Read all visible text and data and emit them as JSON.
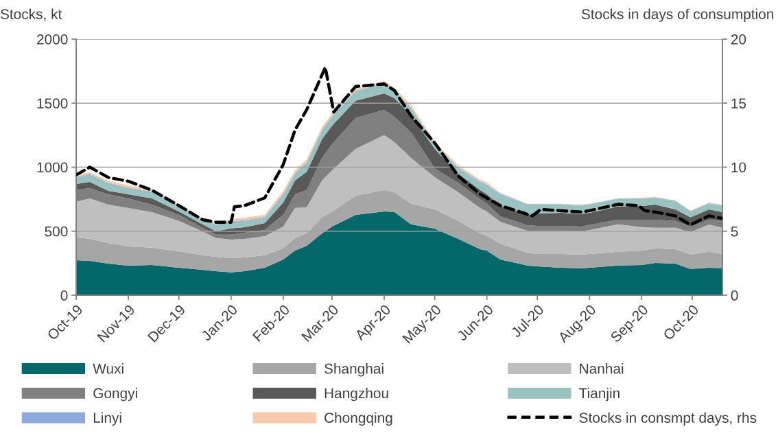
{
  "chart_data": {
    "type": "area",
    "stacked": true,
    "ylabel": "Stocks, kt",
    "y2label": "Stocks in days of consumption",
    "x": [
      "2019-10-01",
      "2019-10-09",
      "2019-10-20",
      "2019-11-01",
      "2019-11-15",
      "2019-12-01",
      "2019-12-15",
      "2019-12-23",
      "2020-01-01",
      "2020-01-09",
      "2020-01-21",
      "2020-02-01",
      "2020-02-08",
      "2020-02-15",
      "2020-02-24",
      "2020-03-01",
      "2020-03-15",
      "2020-04-01",
      "2020-04-07",
      "2020-04-17",
      "2020-05-01",
      "2020-05-15",
      "2020-05-28",
      "2020-06-01",
      "2020-06-09",
      "2020-06-25",
      "2020-07-01",
      "2020-07-15",
      "2020-07-27",
      "2020-08-01",
      "2020-08-18",
      "2020-09-01",
      "2020-09-09",
      "2020-09-21",
      "2020-09-30",
      "2020-10-11",
      "2020-10-19"
    ],
    "series": [
      {
        "name": "Wuxi",
        "color": "#04676a",
        "values": [
          273,
          268,
          247,
          231,
          236,
          214,
          198,
          188,
          179,
          188,
          214,
          279,
          349,
          386,
          483,
          536,
          627,
          654,
          650,
          554,
          520,
          440,
          359,
          349,
          279,
          232,
          225,
          214,
          211,
          214,
          232,
          236,
          252,
          247,
          205,
          214,
          211
        ]
      },
      {
        "name": "Shanghai",
        "color": "#a6a6a6",
        "values": [
          179,
          173,
          160,
          150,
          136,
          129,
          115,
          112,
          110,
          107,
          99,
          87,
          98,
          97,
          125,
          118,
          150,
          168,
          154,
          161,
          150,
          141,
          124,
          117,
          123,
          100,
          97,
          108,
          107,
          108,
          107,
          113,
          114,
          112,
          113,
          125,
          111
        ]
      },
      {
        "name": "Nanhai",
        "color": "#bfbfbf",
        "values": [
          277,
          315,
          301,
          300,
          277,
          238,
          186,
          147,
          145,
          145,
          148,
          170,
          234,
          205,
          288,
          322,
          367,
          429,
          393,
          357,
          252,
          223,
          198,
          188,
          172,
          172,
          178,
          178,
          181,
          187,
          215,
          183,
          161,
          168,
          175,
          213,
          205
        ]
      },
      {
        "name": "Gongyi",
        "color": "#808080",
        "values": [
          93,
          80,
          80,
          75,
          59,
          46,
          28,
          26,
          39,
          48,
          48,
          91,
          107,
          134,
          176,
          204,
          241,
          197,
          197,
          199,
          70,
          72,
          70,
          61,
          43,
          43,
          41,
          41,
          37,
          40,
          36,
          58,
          63,
          54,
          43,
          38,
          54
        ]
      },
      {
        "name": "Hangzhou",
        "color": "#595959",
        "values": [
          46,
          49,
          27,
          32,
          48,
          27,
          27,
          27,
          49,
          43,
          54,
          97,
          108,
          143,
          145,
          144,
          134,
          128,
          145,
          134,
          152,
          73,
          71,
          73,
          80,
          80,
          99,
          102,
          98,
          94,
          103,
          107,
          118,
          89,
          72,
          80,
          68
        ]
      },
      {
        "name": "Tianjin",
        "color": "#9ac2c1",
        "values": [
          49,
          59,
          59,
          48,
          48,
          39,
          32,
          47,
          52,
          50,
          45,
          64,
          53,
          71,
          70,
          70,
          73,
          77,
          61,
          53,
          36,
          43,
          63,
          70,
          91,
          81,
          68,
          65,
          63,
          65,
          58,
          54,
          53,
          64,
          46,
          45,
          48
        ]
      },
      {
        "name": "Linyi",
        "color": "#8faadc",
        "values": [
          5,
          5,
          5,
          5,
          5,
          5,
          5,
          5,
          5,
          5,
          5,
          5,
          5,
          5,
          5,
          5,
          5,
          5,
          5,
          5,
          5,
          5,
          5,
          5,
          5,
          4,
          4,
          4,
          4,
          4,
          4,
          4,
          4,
          4,
          4,
          4,
          4
        ]
      },
      {
        "name": "Chongqing",
        "color": "#f8cbad",
        "values": [
          22,
          11,
          17,
          17,
          17,
          15,
          9,
          11,
          16,
          20,
          14,
          22,
          22,
          22,
          22,
          22,
          17,
          15,
          14,
          22,
          12,
          18,
          12,
          16,
          7,
          3,
          3,
          3,
          7,
          3,
          3,
          6,
          3,
          2,
          3,
          5,
          5
        ]
      },
      {
        "name": "Stocks in consmpt days, rhs",
        "type": "line",
        "axis": "y2",
        "color": "#000000",
        "line_style": "dashed",
        "x": [
          "2019-10-01",
          "2019-10-09",
          "2019-10-20",
          "2019-11-01",
          "2019-11-15",
          "2019-12-01",
          "2019-12-15",
          "2019-12-23",
          "2020-01-01",
          "2020-01-03",
          "2020-01-09",
          "2020-01-21",
          "2020-02-01",
          "2020-02-08",
          "2020-02-15",
          "2020-02-26",
          "2020-03-02",
          "2020-03-15",
          "2020-04-01",
          "2020-04-07",
          "2020-04-17",
          "2020-05-01",
          "2020-05-15",
          "2020-05-28",
          "2020-06-09",
          "2020-06-28",
          "2020-07-03",
          "2020-07-15",
          "2020-07-27",
          "2020-08-01",
          "2020-08-18",
          "2020-08-30",
          "2020-09-03",
          "2020-09-09",
          "2020-09-21",
          "2020-09-30",
          "2020-10-11",
          "2020-10-19"
        ],
        "values": [
          9.4,
          10.0,
          9.2,
          8.9,
          8.2,
          7.0,
          5.9,
          5.7,
          5.7,
          6.9,
          7.0,
          7.6,
          10.2,
          12.9,
          14.5,
          17.8,
          14.3,
          16.3,
          16.5,
          16.0,
          14.0,
          11.9,
          9.3,
          7.9,
          7.0,
          6.2,
          6.7,
          6.6,
          6.5,
          6.6,
          7.1,
          7.0,
          6.6,
          6.5,
          6.2,
          5.5,
          6.2,
          6.0
        ]
      }
    ],
    "xlim": [
      "2019-10-01",
      "2020-10-19"
    ],
    "xticks": [
      {
        "value": "2019-10-01",
        "label": "Oct-19"
      },
      {
        "value": "2019-11-01",
        "label": "Nov-19"
      },
      {
        "value": "2019-12-01",
        "label": "Dec-19"
      },
      {
        "value": "2020-01-01",
        "label": "Jan-20"
      },
      {
        "value": "2020-02-01",
        "label": "Feb-20"
      },
      {
        "value": "2020-03-01",
        "label": "Mar-20"
      },
      {
        "value": "2020-04-01",
        "label": "Apr-20"
      },
      {
        "value": "2020-05-01",
        "label": "May-20"
      },
      {
        "value": "2020-06-01",
        "label": "Jun-20"
      },
      {
        "value": "2020-07-01",
        "label": "Jul-20"
      },
      {
        "value": "2020-08-01",
        "label": "Aug-20"
      },
      {
        "value": "2020-09-01",
        "label": "Sep-20"
      },
      {
        "value": "2020-10-01",
        "label": "Oct-20"
      }
    ],
    "ylim": [
      0,
      2000
    ],
    "yticks": [
      0,
      500,
      1000,
      1500,
      2000
    ],
    "y2lim": [
      0,
      20
    ],
    "y2ticks": [
      0,
      5,
      10,
      15,
      20
    ],
    "grid": "y",
    "legend": "bottom"
  }
}
